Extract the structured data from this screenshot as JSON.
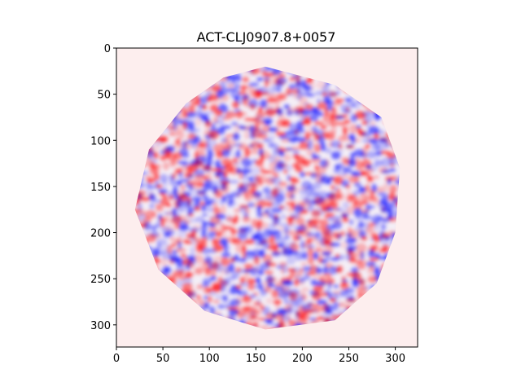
{
  "chart_data": {
    "type": "heatmap",
    "title": "ACT-CLJ0907.8+0057",
    "xlabel": "",
    "ylabel": "",
    "xlim": [
      0,
      324
    ],
    "ylim": [
      324,
      0
    ],
    "y_axis_inverted": true,
    "x_ticks": [
      0,
      50,
      100,
      150,
      200,
      250,
      300
    ],
    "y_ticks": [
      0,
      50,
      100,
      150,
      200,
      250,
      300
    ],
    "colormap": "bwr",
    "background_value_color": "#fdeeee",
    "positive_color": "#ff0000",
    "negative_color": "#0000ff",
    "footprint_shape": "irregular heptagon-like disk",
    "footprint_vertices": [
      [
        160,
        20
      ],
      [
        235,
        40
      ],
      [
        285,
        75
      ],
      [
        305,
        130
      ],
      [
        300,
        200
      ],
      [
        280,
        255
      ],
      [
        235,
        295
      ],
      [
        160,
        305
      ],
      [
        95,
        285
      ],
      [
        45,
        240
      ],
      [
        20,
        175
      ],
      [
        35,
        110
      ],
      [
        75,
        60
      ],
      [
        115,
        32
      ]
    ],
    "grid": false,
    "legend": "none"
  }
}
